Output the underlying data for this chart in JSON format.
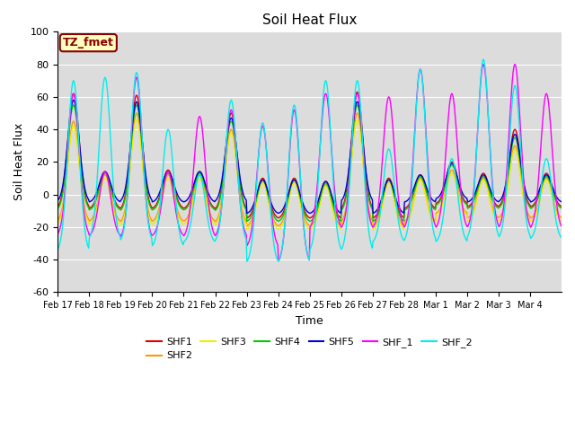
{
  "title": "Soil Heat Flux",
  "xlabel": "Time",
  "ylabel": "Soil Heat Flux",
  "ylim": [
    -60,
    100
  ],
  "yticks": [
    -60,
    -40,
    -20,
    0,
    20,
    40,
    60,
    80,
    100
  ],
  "background_color": "#dcdcdc",
  "fig_color": "#ffffff",
  "annotation_text": "TZ_fmet",
  "annotation_bg": "#ffffc0",
  "annotation_edge": "#8b0000",
  "series_colors": {
    "SHF1": "#dd0000",
    "SHF2": "#ff9900",
    "SHF3": "#eeee00",
    "SHF4": "#00cc00",
    "SHF5": "#0000dd",
    "SHF_1": "#ff00ff",
    "SHF_2": "#00eeee"
  },
  "xtick_labels": [
    "Feb 17",
    "Feb 18",
    "Feb 19",
    "Feb 20",
    "Feb 21",
    "Feb 22",
    "Feb 23",
    "Feb 24",
    "Feb 25",
    "Feb 26",
    "Feb 27",
    "Feb 28",
    "Mar 1",
    "Mar 2",
    "Mar 3",
    "Mar 4"
  ],
  "grid_color": "#ffffff",
  "line_width": 1.0,
  "n_days": 16,
  "pts_per_day": 48,
  "daytime_peaks": {
    "SHF1": [
      62,
      14,
      61,
      15,
      14,
      50,
      10,
      10,
      8,
      63,
      10,
      12,
      20,
      13,
      40,
      13
    ],
    "SHF2": [
      45,
      12,
      50,
      12,
      12,
      40,
      8,
      8,
      6,
      50,
      8,
      10,
      15,
      10,
      30,
      10
    ],
    "SHF3": [
      42,
      10,
      46,
      10,
      10,
      38,
      7,
      7,
      5,
      46,
      7,
      9,
      13,
      9,
      28,
      9
    ],
    "SHF4": [
      55,
      13,
      55,
      13,
      13,
      45,
      9,
      9,
      7,
      55,
      9,
      11,
      18,
      11,
      35,
      11
    ],
    "SHF5": [
      58,
      14,
      57,
      14,
      14,
      47,
      9,
      9,
      8,
      57,
      9,
      12,
      19,
      12,
      37,
      12
    ],
    "SHF_1": [
      62,
      14,
      72,
      14,
      48,
      52,
      42,
      52,
      62,
      62,
      60,
      77,
      62,
      80,
      80,
      62
    ],
    "SHF_2": [
      70,
      72,
      75,
      40,
      12,
      58,
      44,
      55,
      70,
      70,
      28,
      77,
      22,
      83,
      67,
      22
    ]
  },
  "nighttime_troughs": {
    "SHF1": [
      -9,
      -9,
      -10,
      -9,
      -9,
      -10,
      -15,
      -15,
      -15,
      -10,
      -15,
      -9,
      -6,
      -8,
      -8,
      -8
    ],
    "SHF2": [
      -17,
      -17,
      -18,
      -17,
      -17,
      -18,
      -20,
      -20,
      -20,
      -18,
      -20,
      -17,
      -12,
      -15,
      -15,
      -15
    ],
    "SHF3": [
      -19,
      -19,
      -20,
      -19,
      -19,
      -20,
      -22,
      -22,
      -22,
      -20,
      -22,
      -19,
      -13,
      -17,
      -17,
      -17
    ],
    "SHF4": [
      -10,
      -10,
      -11,
      -10,
      -10,
      -11,
      -17,
      -17,
      -17,
      -11,
      -17,
      -10,
      -7,
      -9,
      -9,
      -9
    ],
    "SHF5": [
      -5,
      -5,
      -5,
      -5,
      -5,
      -5,
      -12,
      -12,
      -12,
      -5,
      -12,
      -5,
      -3,
      -5,
      -5,
      -5
    ],
    "SHF_1": [
      -26,
      -26,
      -28,
      -26,
      -27,
      -27,
      -33,
      -43,
      -22,
      -22,
      -22,
      -22,
      -22,
      -22,
      -22,
      -22
    ],
    "SHF_2": [
      -36,
      -29,
      -30,
      -33,
      -30,
      -30,
      -43,
      -43,
      -36,
      -36,
      -30,
      -30,
      -30,
      -28,
      -28,
      -28
    ]
  }
}
